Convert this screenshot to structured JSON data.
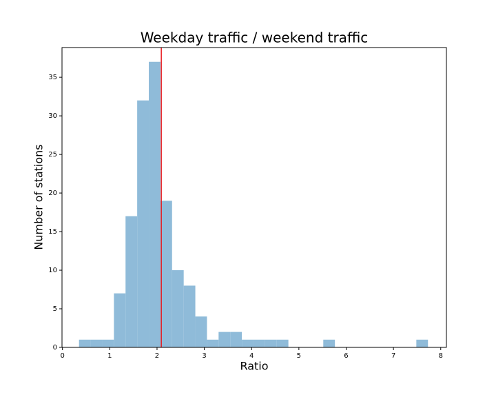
{
  "chart_data": {
    "type": "histogram",
    "title": "Weekday traffic / weekend traffic",
    "x_label": "Ratio",
    "y_label": "Number of stations",
    "bins": [
      0.35,
      0.596,
      0.842,
      1.088,
      1.334,
      1.58,
      1.826,
      2.072,
      2.318,
      2.564,
      2.81,
      3.056,
      3.302,
      3.548,
      3.794,
      4.04,
      4.286,
      4.532,
      4.778,
      5.024,
      5.27,
      5.516,
      5.762,
      6.008,
      6.254,
      6.5,
      6.746,
      6.992,
      7.238,
      7.484,
      7.73
    ],
    "values": [
      1,
      1,
      1,
      7,
      17,
      32,
      37,
      19,
      10,
      8,
      4,
      1,
      2,
      2,
      1,
      1,
      1,
      1,
      0,
      0,
      0,
      1,
      0,
      0,
      0,
      0,
      0,
      0,
      0,
      1
    ],
    "color": "#8fbbd9",
    "vline": {
      "value": 2.09,
      "color": "#e8141a"
    },
    "xlim": [
      -0.01,
      8.12
    ],
    "xticks": [
      0,
      1,
      2,
      3,
      4,
      5,
      6,
      7,
      8
    ],
    "ylim": [
      0,
      38.85
    ],
    "yticks": [
      0,
      5,
      10,
      15,
      20,
      25,
      30,
      35
    ],
    "grid": false
  }
}
